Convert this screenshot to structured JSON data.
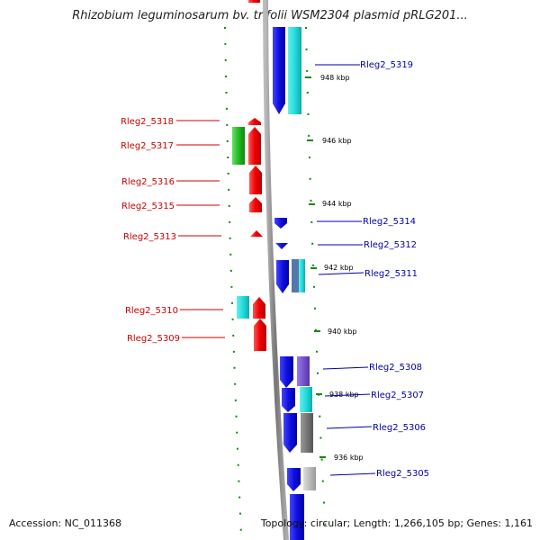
{
  "title": "Rhizobium leguminosarum bv. trifolii WSM2304 plasmid pRLG201...",
  "footer": {
    "accession": "Accession: NC_011368",
    "topology": "Topology: circular; Length: 1,266,105 bp; Genes: 1,161"
  },
  "kbp_labels": [
    "948 kbp",
    "946 kbp",
    "944 kbp",
    "942 kbp",
    "940 kbp",
    "938 kbp",
    "936 kbp"
  ],
  "genes_left": [
    "Rleg2_5318",
    "Rleg2_5317",
    "Rleg2_5316",
    "Rleg2_5315",
    "Rleg2_5313",
    "Rleg2_5310",
    "Rleg2_5309"
  ],
  "genes_right": [
    "Rleg2_5319",
    "Rleg2_5314",
    "Rleg2_5312",
    "Rleg2_5311",
    "Rleg2_5308",
    "Rleg2_5307",
    "Rleg2_5306",
    "Rleg2_5305"
  ],
  "colors": {
    "left_label": "#cc0000",
    "right_label": "#0000aa",
    "red_gene": "#ee0000",
    "blue_gene": "#1010dd",
    "cyan_gene": "#22dddd",
    "green_gene": "#22bb22",
    "purple_gene": "#7755cc",
    "gray_gene": "#777777",
    "light_gray_gene": "#bbbbbb",
    "steel_gene": "#5577aa",
    "backbone": "#888888",
    "dots": "#118811"
  }
}
